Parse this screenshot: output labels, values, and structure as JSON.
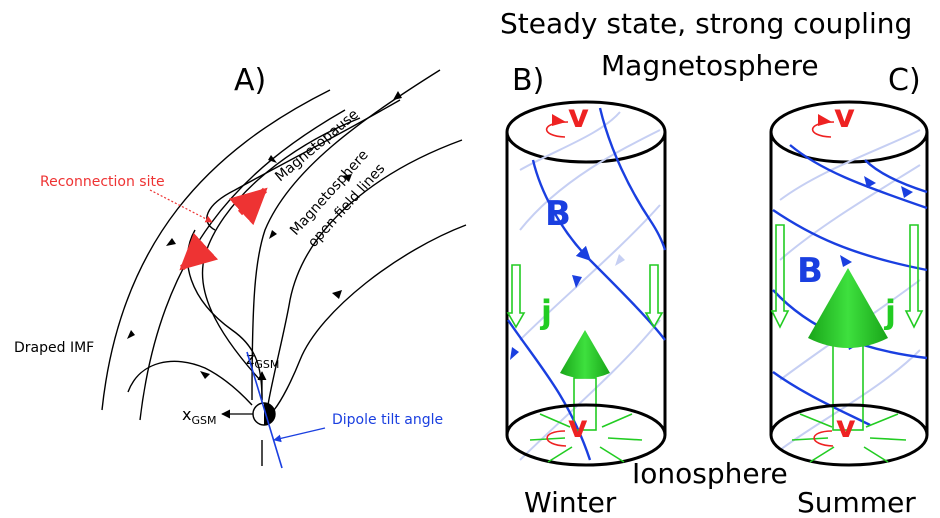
{
  "panel_labels": {
    "a": "A)",
    "b": "B)",
    "c": "C)"
  },
  "header": {
    "title": "Steady state, strong coupling",
    "subtitle": "Magnetosphere"
  },
  "panel_a": {
    "reconnection_site": "Reconnection site",
    "magnetopause": "Magnetopause",
    "open_lines_1": "Magnetosphere",
    "open_lines_2": "open field lines",
    "draped_imf": "Draped IMF",
    "z_axis": "z",
    "z_sub": "GSM",
    "x_axis": "x",
    "x_sub": "GSM",
    "dipole_tilt": "Dipole tilt angle"
  },
  "panel_b": {
    "v_top": "v",
    "field": "B",
    "current": "j",
    "v_bottom": "v",
    "season": "Winter"
  },
  "panel_c": {
    "v_top": "v",
    "field": "B",
    "current": "j",
    "v_bottom": "v",
    "season": "Summer"
  },
  "footer": {
    "ionosphere": "Ionosphere"
  },
  "colors": {
    "field": "#1a3fe0",
    "flow": "#ee2222",
    "current": "#22cc22",
    "reconnection": "#ee3333",
    "tilt": "#1a3fe0"
  }
}
